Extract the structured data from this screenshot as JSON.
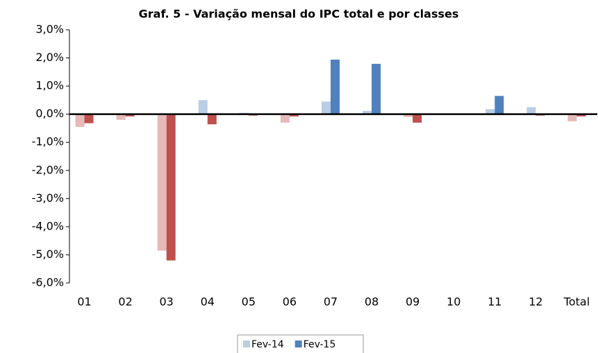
{
  "chart_data": {
    "type": "bar",
    "title": "Graf. 5 - Variação mensal do IPC total e por classes",
    "categories": [
      "01",
      "02",
      "03",
      "04",
      "05",
      "06",
      "07",
      "08",
      "09",
      "10",
      "11",
      "12",
      "Total"
    ],
    "series": [
      {
        "name": "Fev-14",
        "color": "#b9cde5",
        "negative_color": "#e6b9b8",
        "values": [
          -0.45,
          -0.2,
          -4.85,
          0.5,
          0.05,
          -0.3,
          0.45,
          0.12,
          -0.1,
          0,
          0.18,
          0.25,
          -0.25
        ]
      },
      {
        "name": "Fev-15",
        "color": "#4f81bd",
        "negative_color": "#c0504d",
        "values": [
          -0.32,
          -0.08,
          -5.2,
          -0.36,
          -0.05,
          -0.08,
          1.94,
          1.79,
          -0.3,
          0,
          0.65,
          -0.05,
          -0.08
        ]
      }
    ],
    "ylim": [
      -6,
      3
    ],
    "yticks": [
      {
        "value": -6,
        "label": "-6,0%"
      },
      {
        "value": -5,
        "label": "-5,0%"
      },
      {
        "value": -4,
        "label": "-4,0%"
      },
      {
        "value": -3,
        "label": "-3,0%"
      },
      {
        "value": -2,
        "label": "-2,0%"
      },
      {
        "value": -1,
        "label": "-1,0%"
      },
      {
        "value": 0,
        "label": "0,0%"
      },
      {
        "value": 1,
        "label": "1,0%"
      },
      {
        "value": 2,
        "label": "2,0%"
      },
      {
        "value": 3,
        "label": "3,0%"
      }
    ],
    "grid": false,
    "legend": "bottom"
  }
}
